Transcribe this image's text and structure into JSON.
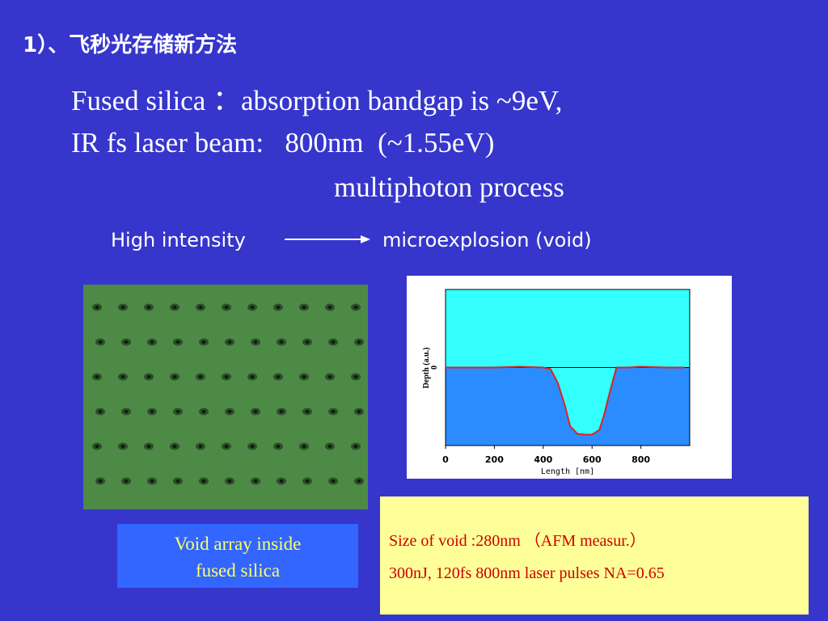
{
  "title": "1）、飞秒光存储新方法",
  "body": {
    "lines": [
      "Fused silica ：absorption bandgap is ~9eV,",
      "IR fs laser beam:   800nm  (~1.55eV)",
      "multiphoton process"
    ]
  },
  "arrow": {
    "from": "High intensity",
    "to": "microexplosion (void)"
  },
  "image_caption": [
    "Void array inside",
    "fused silica"
  ],
  "chart": {
    "type": "line",
    "ylabel": "Depth (a.u.)",
    "xlabel": "Length [nm]",
    "x": [
      0,
      100,
      200,
      300,
      400,
      430,
      460,
      490,
      510,
      540,
      570,
      600,
      630,
      650,
      670,
      700,
      750,
      800,
      900,
      980
    ],
    "values": [
      0,
      0,
      0,
      0.01,
      0,
      -0.02,
      -0.2,
      -0.5,
      -0.75,
      -0.85,
      -0.86,
      -0.86,
      -0.8,
      -0.6,
      -0.35,
      0,
      0,
      0.01,
      0,
      0
    ],
    "xlim": [
      0,
      1000
    ],
    "ylim": [
      -1,
      1
    ],
    "xticks": [
      0,
      200,
      400,
      600,
      800
    ],
    "yticks": [
      0
    ],
    "color": "#e02020"
  },
  "note": {
    "lines": [
      "Size of void :280nm （AFM measur.）",
      "300nJ, 120fs 800nm laser pulses NA=0.65"
    ]
  }
}
